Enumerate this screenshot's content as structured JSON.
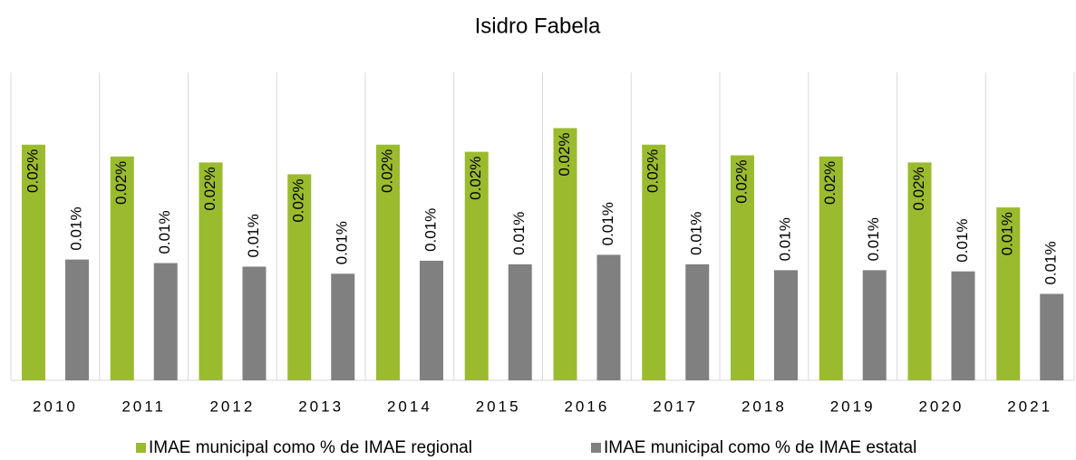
{
  "chart_data": {
    "type": "bar",
    "title": "Isidro Fabela",
    "categories": [
      "2010",
      "2011",
      "2012",
      "2013",
      "2014",
      "2015",
      "2016",
      "2017",
      "2018",
      "2019",
      "2020",
      "2021"
    ],
    "series": [
      {
        "name": "IMAE municipal como % de IMAE regional",
        "color": "#9bbb2f",
        "values": [
          0.0199,
          0.0189,
          0.0184,
          0.0174,
          0.0199,
          0.0193,
          0.0213,
          0.0199,
          0.019,
          0.0189,
          0.0184,
          0.0146
        ],
        "value_labels": [
          "0.02%",
          "0.02%",
          "0.02%",
          "0.02%",
          "0.02%",
          "0.02%",
          "0.02%",
          "0.02%",
          "0.02%",
          "0.02%",
          "0.02%",
          "0.01%"
        ]
      },
      {
        "name": "IMAE municipal como % de IMAE estatal",
        "color": "#808080",
        "values": [
          0.0102,
          0.0099,
          0.0096,
          0.009,
          0.0101,
          0.0098,
          0.0106,
          0.0098,
          0.0093,
          0.0093,
          0.0092,
          0.0073
        ],
        "value_labels": [
          "0.01%",
          "0.01%",
          "0.01%",
          "0.01%",
          "0.01%",
          "0.01%",
          "0.01%",
          "0.01%",
          "0.01%",
          "0.01%",
          "0.01%",
          "0.01%"
        ]
      }
    ],
    "ylim": [
      0,
      0.026
    ]
  }
}
